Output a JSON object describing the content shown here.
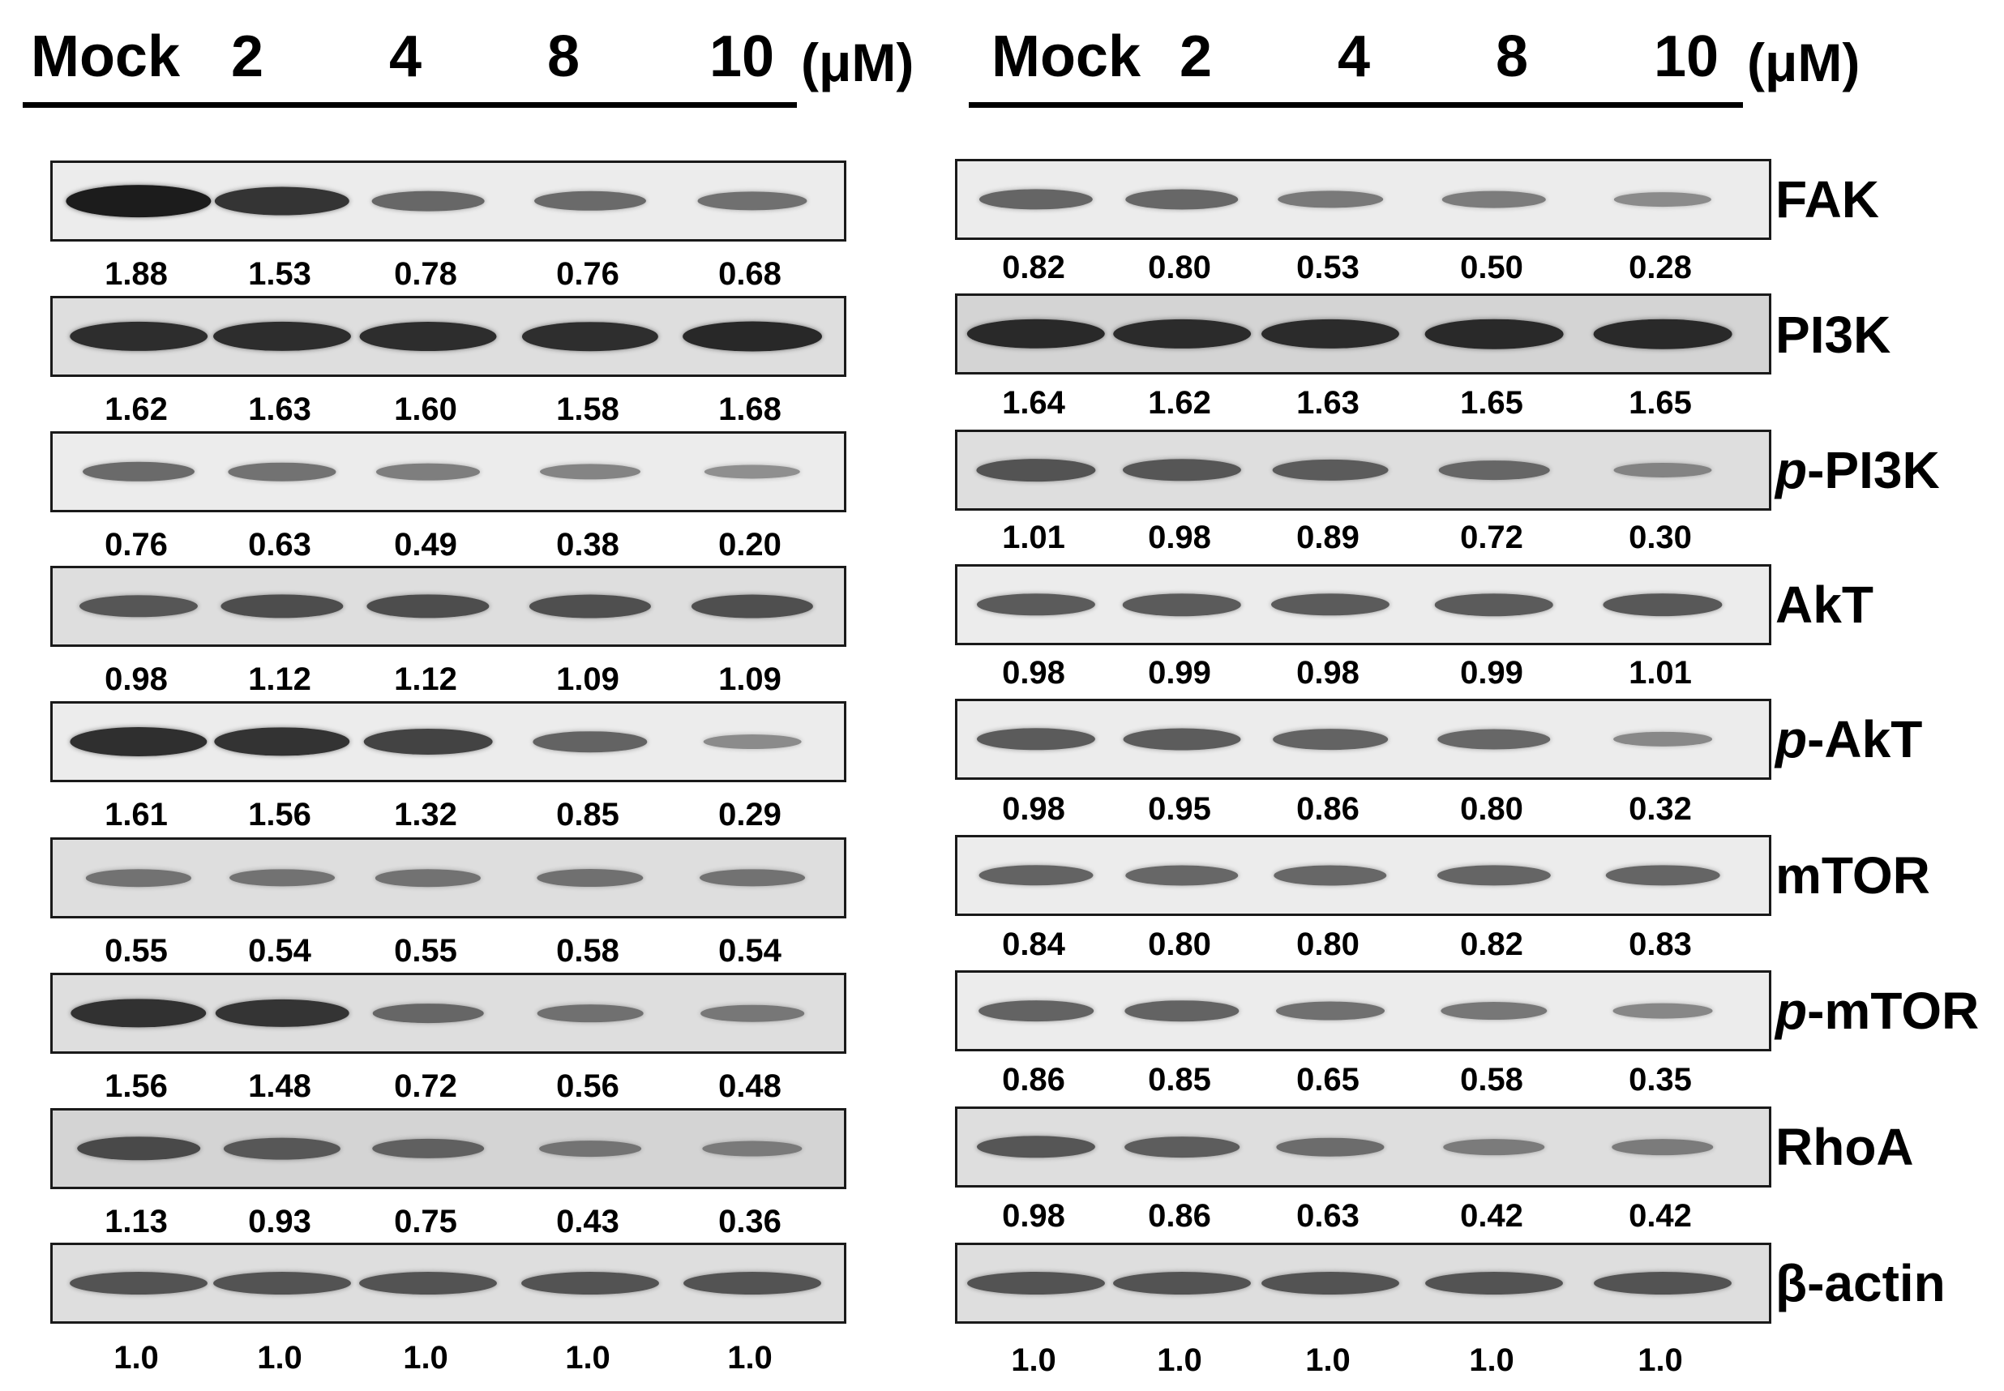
{
  "concentrations": [
    "Mock",
    "2",
    "4",
    "8",
    "10"
  ],
  "unit": "(μM)",
  "proteins": [
    {
      "name": "FAK",
      "prefix": ""
    },
    {
      "name": "PI3K",
      "prefix": ""
    },
    {
      "name": "-PI3K",
      "prefix": "p"
    },
    {
      "name": "AkT",
      "prefix": ""
    },
    {
      "name": "-AkT",
      "prefix": "p"
    },
    {
      "name": "mTOR",
      "prefix": ""
    },
    {
      "name": "-mTOR",
      "prefix": "p"
    },
    {
      "name": "RhoA",
      "prefix": ""
    },
    {
      "name": "β-actin",
      "prefix": ""
    }
  ],
  "left_values": [
    [
      "1.88",
      "1.53",
      "0.78",
      "0.76",
      "0.68"
    ],
    [
      "1.62",
      "1.63",
      "1.60",
      "1.58",
      "1.68"
    ],
    [
      "0.76",
      "0.63",
      "0.49",
      "0.38",
      "0.20"
    ],
    [
      "0.98",
      "1.12",
      "1.12",
      "1.09",
      "1.09"
    ],
    [
      "1.61",
      "1.56",
      "1.32",
      "0.85",
      "0.29"
    ],
    [
      "0.55",
      "0.54",
      "0.55",
      "0.58",
      "0.54"
    ],
    [
      "1.56",
      "1.48",
      "0.72",
      "0.56",
      "0.48"
    ],
    [
      "1.13",
      "0.93",
      "0.75",
      "0.43",
      "0.36"
    ],
    [
      "1.0",
      "1.0",
      "1.0",
      "1.0",
      "1.0"
    ]
  ],
  "right_values": [
    [
      "0.82",
      "0.80",
      "0.53",
      "0.50",
      "0.28"
    ],
    [
      "1.64",
      "1.62",
      "1.63",
      "1.65",
      "1.65"
    ],
    [
      "1.01",
      "0.98",
      "0.89",
      "0.72",
      "0.30"
    ],
    [
      "0.98",
      "0.99",
      "0.98",
      "0.99",
      "1.01"
    ],
    [
      "0.98",
      "0.95",
      "0.86",
      "0.80",
      "0.32"
    ],
    [
      "0.84",
      "0.80",
      "0.80",
      "0.82",
      "0.83"
    ],
    [
      "0.86",
      "0.85",
      "0.65",
      "0.58",
      "0.35"
    ],
    [
      "0.98",
      "0.86",
      "0.63",
      "0.42",
      "0.42"
    ],
    [
      "1.0",
      "1.0",
      "1.0",
      "1.0",
      "1.0"
    ]
  ]
}
